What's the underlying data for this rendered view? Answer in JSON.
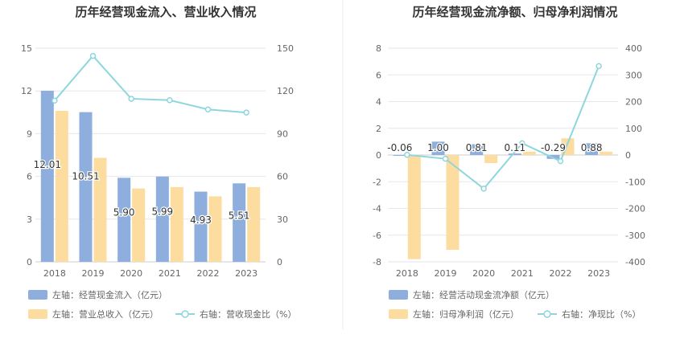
{
  "colors": {
    "bar_primary": "#8eaedd",
    "bar_secondary": "#fddca0",
    "line": "#8dd6de",
    "axis_text": "#666666",
    "grid": "#e6e6ee",
    "title": "#333333",
    "divider": "#eeeeee"
  },
  "chart_data": [
    {
      "type": "bar",
      "title": "历年经营现金流入、营业收入情况",
      "categories": [
        "2018",
        "2019",
        "2020",
        "2021",
        "2022",
        "2023"
      ],
      "left_axis": {
        "ticks": [
          "0",
          "3",
          "6",
          "9",
          "12",
          "15"
        ],
        "ylim": [
          0,
          15
        ]
      },
      "right_axis": {
        "ticks": [
          "0",
          "30",
          "60",
          "90",
          "120",
          "150"
        ],
        "ylim": [
          0,
          150
        ]
      },
      "series": [
        {
          "name": "左轴：经营现金流入（亿元）",
          "axis": "left",
          "kind": "bar",
          "color_key": "bar_primary",
          "values": [
            12.01,
            10.51,
            5.9,
            5.99,
            4.93,
            5.51
          ],
          "labels": [
            "12.01",
            "10.51",
            "5.90",
            "5.99",
            "4.93",
            "5.51"
          ]
        },
        {
          "name": "左轴：营业总收入（亿元）",
          "axis": "left",
          "kind": "bar",
          "color_key": "bar_secondary",
          "values": [
            10.6,
            7.3,
            5.15,
            5.25,
            4.6,
            5.25
          ]
        },
        {
          "name": "右轴：营收现金比（%）",
          "axis": "right",
          "kind": "line",
          "color_key": "line",
          "values": [
            113.2,
            144.6,
            114.5,
            113.5,
            107,
            104.8
          ]
        }
      ],
      "legend_rows": [
        [
          "left_cash_in"
        ],
        [
          "left_revenue",
          "right_ratio"
        ]
      ]
    },
    {
      "type": "bar",
      "title": "历年经营现金流净额、归母净利润情况",
      "categories": [
        "2018",
        "2019",
        "2020",
        "2021",
        "2022",
        "2023"
      ],
      "left_axis": {
        "ticks": [
          "-8",
          "-6",
          "-4",
          "-2",
          "0",
          "2",
          "4",
          "6",
          "8"
        ],
        "ylim": [
          -8,
          8
        ]
      },
      "right_axis": {
        "ticks": [
          "-400",
          "-300",
          "-200",
          "-100",
          "0",
          "100",
          "200",
          "300",
          "400"
        ],
        "ylim": [
          -400,
          400
        ]
      },
      "series": [
        {
          "name": "左轴：经营活动现金流净额（亿元）",
          "axis": "left",
          "kind": "bar",
          "color_key": "bar_primary",
          "values": [
            -0.06,
            1.0,
            0.81,
            0.11,
            -0.29,
            0.88
          ],
          "labels": [
            "-0.06",
            "1.00",
            "0.81",
            "0.11",
            "-0.29",
            "0.88"
          ]
        },
        {
          "name": "左轴：归母净利润（亿元）",
          "axis": "left",
          "kind": "bar",
          "color_key": "bar_secondary",
          "values": [
            -7.8,
            -7.1,
            -0.6,
            0.25,
            1.25,
            0.25
          ]
        },
        {
          "name": "右轴：净现比（%）",
          "axis": "right",
          "kind": "line",
          "color_key": "line",
          "values": [
            0.8,
            -14,
            -126,
            44,
            -23,
            333
          ]
        }
      ]
    }
  ]
}
